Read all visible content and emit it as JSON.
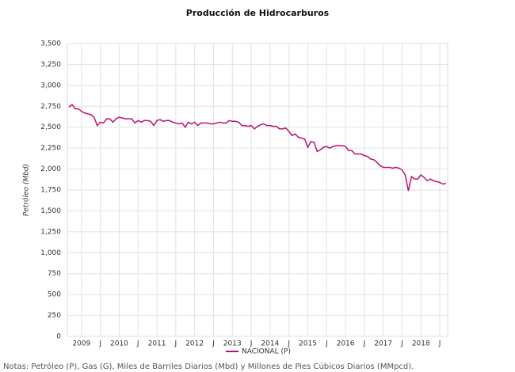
{
  "chart_data": {
    "type": "line",
    "title": "Producción de Hidrocarburos",
    "ylabel": "Petróleo (Mbd)",
    "note": "Notas: Petróleo (P), Gas (G), Miles de Barriles Diarios (Mbd) y Millones de Pies Cúbicos Diarios (MMpcd).",
    "legend": "bottom",
    "grid": true,
    "categories": [
      null,
      null,
      null,
      null,
      "2009",
      null,
      null,
      null,
      null,
      null,
      "J",
      null,
      null,
      null,
      null,
      null,
      "2010",
      null,
      null,
      null,
      null,
      null,
      "J",
      null,
      null,
      null,
      null,
      null,
      "2011",
      null,
      null,
      null,
      null,
      null,
      "J",
      null,
      null,
      null,
      null,
      null,
      "2012",
      null,
      null,
      null,
      null,
      null,
      "J",
      null,
      null,
      null,
      null,
      null,
      "2013",
      null,
      null,
      null,
      null,
      null,
      "J",
      null,
      null,
      null,
      null,
      null,
      "2014",
      null,
      null,
      null,
      null,
      null,
      "J",
      null,
      null,
      null,
      null,
      null,
      "2015",
      null,
      null,
      null,
      null,
      null,
      "J",
      null,
      null,
      null,
      null,
      null,
      "2016",
      null,
      null,
      null,
      null,
      null,
      "J",
      null,
      null,
      null,
      null,
      null,
      "2017",
      null,
      null,
      null,
      null,
      null,
      "J",
      null,
      null,
      null,
      null,
      null,
      "2018",
      null,
      null,
      null,
      null,
      null,
      "J",
      null,
      null
    ],
    "series": [
      {
        "name": "NACIONAL (P)",
        "color": "#b8146f",
        "values": [
          2740,
          2770,
          2720,
          2720,
          2690,
          2670,
          2660,
          2650,
          2620,
          2520,
          2560,
          2550,
          2600,
          2600,
          2560,
          2600,
          2620,
          2610,
          2600,
          2600,
          2600,
          2550,
          2580,
          2560,
          2580,
          2580,
          2570,
          2520,
          2580,
          2590,
          2570,
          2580,
          2580,
          2560,
          2550,
          2540,
          2550,
          2500,
          2560,
          2540,
          2560,
          2520,
          2550,
          2550,
          2550,
          2540,
          2540,
          2550,
          2560,
          2550,
          2550,
          2580,
          2570,
          2570,
          2560,
          2520,
          2520,
          2510,
          2520,
          2480,
          2510,
          2530,
          2540,
          2520,
          2520,
          2510,
          2510,
          2480,
          2480,
          2490,
          2450,
          2400,
          2420,
          2380,
          2370,
          2360,
          2260,
          2330,
          2320,
          2210,
          2230,
          2260,
          2270,
          2250,
          2270,
          2280,
          2280,
          2280,
          2270,
          2220,
          2220,
          2180,
          2180,
          2180,
          2160,
          2150,
          2120,
          2110,
          2080,
          2040,
          2020,
          2020,
          2020,
          2010,
          2020,
          2010,
          1990,
          1930,
          1740,
          1910,
          1880,
          1880,
          1930,
          1900,
          1860,
          1880,
          1860,
          1850,
          1840,
          1820,
          1830
        ]
      }
    ],
    "ylim": [
      0,
      3500
    ],
    "yticks": [
      0,
      250,
      500,
      750,
      {
        "value": 1000,
        "label": "1,000"
      },
      {
        "value": 1250,
        "label": "1,250"
      },
      {
        "value": 1500,
        "label": "1,500"
      },
      {
        "value": 1750,
        "label": "1,750"
      },
      {
        "value": 2000,
        "label": "2,000"
      },
      {
        "value": 2250,
        "label": "2,250"
      },
      {
        "value": 2500,
        "label": "2,500"
      },
      {
        "value": 2750,
        "label": "2,750"
      },
      {
        "value": 3000,
        "label": "3,000"
      },
      {
        "value": 3250,
        "label": "3,250"
      },
      {
        "value": 3500,
        "label": "3,500"
      }
    ]
  }
}
